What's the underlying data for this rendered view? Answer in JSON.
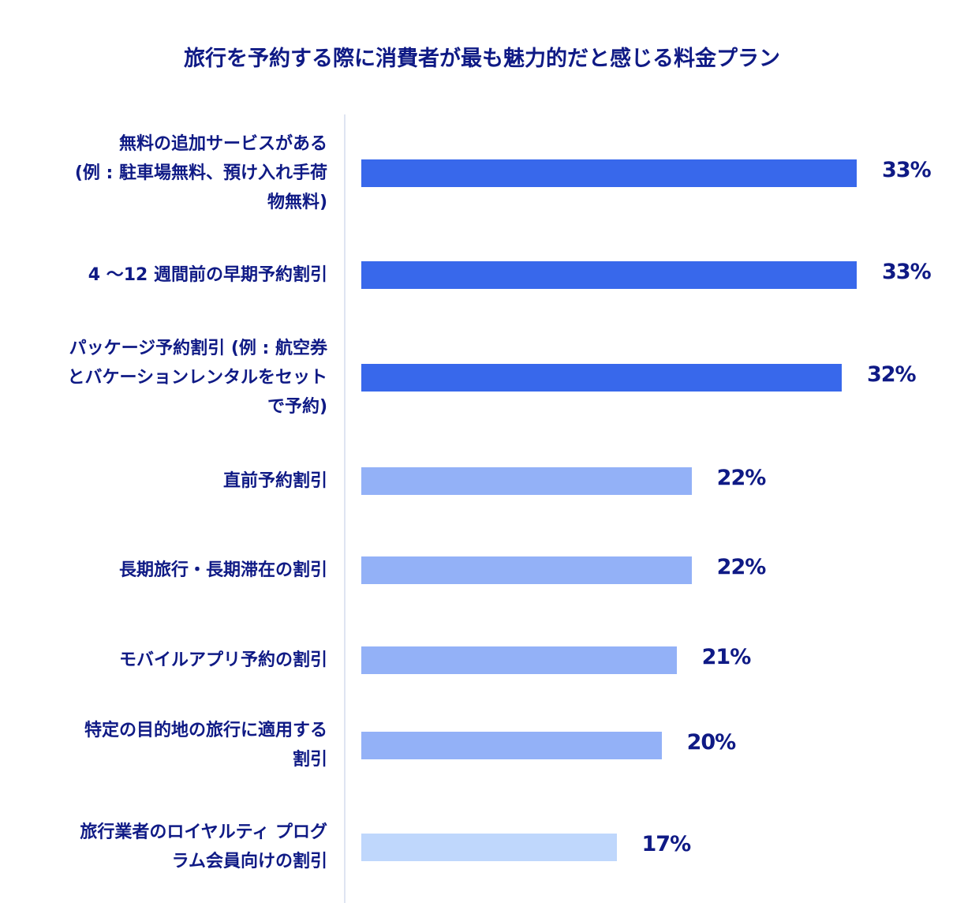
{
  "chart_data": {
    "type": "bar",
    "orientation": "horizontal",
    "title": "旅行を予約する際に消費者が最も魅力的だと感じる料金プラン",
    "categories": [
      [
        "無料の追加サービスがある",
        "(例 : 駐車場無料、預け入れ手荷",
        "物無料)"
      ],
      [
        "4 〜12 週間前の早期予約割引"
      ],
      [
        "パッケージ予約割引 (例 : 航空券",
        "とバケーションレンタルをセット",
        "で予約)"
      ],
      [
        "直前予約割引"
      ],
      [
        "長期旅行・長期滞在の割引"
      ],
      [
        "モバイルアプリ予約の割引"
      ],
      [
        "特定の目的地の旅行に適用する",
        "割引"
      ],
      [
        "旅行業者のロイヤルティ プログ",
        "ラム会員向けの割引"
      ]
    ],
    "values": [
      33,
      33,
      32,
      22,
      22,
      21,
      20,
      17
    ],
    "value_labels": [
      "33%",
      "33%",
      "32%",
      "22%",
      "22%",
      "21%",
      "20%",
      "17%"
    ],
    "bar_colors": [
      "#3868eb",
      "#3868eb",
      "#3868eb",
      "#93b1f7",
      "#93b1f7",
      "#93b1f7",
      "#93b1f7",
      "#bfd7fc"
    ],
    "xlim": [
      0,
      33
    ],
    "grid": false,
    "legend": "none"
  }
}
